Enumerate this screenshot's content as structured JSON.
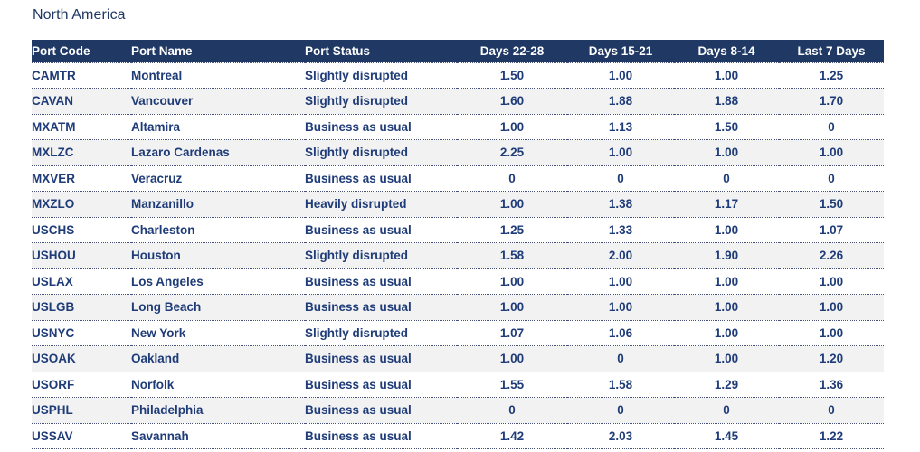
{
  "page": {
    "title": "North America"
  },
  "colors": {
    "header_bg": "#1F3864",
    "header_text": "#FFFFFF",
    "body_text": "#1F3C78",
    "alt_row_bg": "#F2F2F2",
    "row_border": "#46507A"
  },
  "table": {
    "columns": [
      "Port Code",
      "Port Name",
      "Port Status",
      "Days 22-28",
      "Days 15-21",
      "Days 8-14",
      "Last 7 Days"
    ],
    "rows": [
      {
        "code": "CAMTR",
        "name": "Montreal",
        "status": "Slightly disrupted",
        "d22_28": "1.50",
        "d15_21": "1.00",
        "d8_14": "1.00",
        "last7": "1.25"
      },
      {
        "code": "CAVAN",
        "name": "Vancouver",
        "status": "Slightly disrupted",
        "d22_28": "1.60",
        "d15_21": "1.88",
        "d8_14": "1.88",
        "last7": "1.70"
      },
      {
        "code": "MXATM",
        "name": "Altamira",
        "status": "Business as usual",
        "d22_28": "1.00",
        "d15_21": "1.13",
        "d8_14": "1.50",
        "last7": "0"
      },
      {
        "code": "MXLZC",
        "name": "Lazaro Cardenas",
        "status": "Slightly disrupted",
        "d22_28": "2.25",
        "d15_21": "1.00",
        "d8_14": "1.00",
        "last7": "1.00"
      },
      {
        "code": "MXVER",
        "name": "Veracruz",
        "status": "Business as usual",
        "d22_28": "0",
        "d15_21": "0",
        "d8_14": "0",
        "last7": "0"
      },
      {
        "code": "MXZLO",
        "name": "Manzanillo",
        "status": "Heavily disrupted",
        "d22_28": "1.00",
        "d15_21": "1.38",
        "d8_14": "1.17",
        "last7": "1.50"
      },
      {
        "code": "USCHS",
        "name": "Charleston",
        "status": "Business as usual",
        "d22_28": "1.25",
        "d15_21": "1.33",
        "d8_14": "1.00",
        "last7": "1.07"
      },
      {
        "code": "USHOU",
        "name": "Houston",
        "status": "Slightly disrupted",
        "d22_28": "1.58",
        "d15_21": "2.00",
        "d8_14": "1.90",
        "last7": "2.26"
      },
      {
        "code": "USLAX",
        "name": "Los Angeles",
        "status": "Business as usual",
        "d22_28": "1.00",
        "d15_21": "1.00",
        "d8_14": "1.00",
        "last7": "1.00"
      },
      {
        "code": "USLGB",
        "name": "Long Beach",
        "status": "Business as usual",
        "d22_28": "1.00",
        "d15_21": "1.00",
        "d8_14": "1.00",
        "last7": "1.00"
      },
      {
        "code": "USNYC",
        "name": "New York",
        "status": "Slightly disrupted",
        "d22_28": "1.07",
        "d15_21": "1.06",
        "d8_14": "1.00",
        "last7": "1.00"
      },
      {
        "code": "USOAK",
        "name": "Oakland",
        "status": "Business as usual",
        "d22_28": "1.00",
        "d15_21": "0",
        "d8_14": "1.00",
        "last7": "1.20"
      },
      {
        "code": "USORF",
        "name": "Norfolk",
        "status": "Business as usual",
        "d22_28": "1.55",
        "d15_21": "1.58",
        "d8_14": "1.29",
        "last7": "1.36"
      },
      {
        "code": "USPHL",
        "name": "Philadelphia",
        "status": "Business as usual",
        "d22_28": "0",
        "d15_21": "0",
        "d8_14": "0",
        "last7": "0"
      },
      {
        "code": "USSAV",
        "name": "Savannah",
        "status": "Business as usual",
        "d22_28": "1.42",
        "d15_21": "2.03",
        "d8_14": "1.45",
        "last7": "1.22"
      }
    ]
  },
  "chart_data": {
    "type": "table",
    "title": "North America",
    "columns": [
      "Port Code",
      "Port Name",
      "Port Status",
      "Days 22-28",
      "Days 15-21",
      "Days 8-14",
      "Last 7 Days"
    ],
    "rows": [
      [
        "CAMTR",
        "Montreal",
        "Slightly disrupted",
        1.5,
        1.0,
        1.0,
        1.25
      ],
      [
        "CAVAN",
        "Vancouver",
        "Slightly disrupted",
        1.6,
        1.88,
        1.88,
        1.7
      ],
      [
        "MXATM",
        "Altamira",
        "Business as usual",
        1.0,
        1.13,
        1.5,
        0
      ],
      [
        "MXLZC",
        "Lazaro Cardenas",
        "Slightly disrupted",
        2.25,
        1.0,
        1.0,
        1.0
      ],
      [
        "MXVER",
        "Veracruz",
        "Business as usual",
        0,
        0,
        0,
        0
      ],
      [
        "MXZLO",
        "Manzanillo",
        "Heavily disrupted",
        1.0,
        1.38,
        1.17,
        1.5
      ],
      [
        "USCHS",
        "Charleston",
        "Business as usual",
        1.25,
        1.33,
        1.0,
        1.07
      ],
      [
        "USHOU",
        "Houston",
        "Slightly disrupted",
        1.58,
        2.0,
        1.9,
        2.26
      ],
      [
        "USLAX",
        "Los Angeles",
        "Business as usual",
        1.0,
        1.0,
        1.0,
        1.0
      ],
      [
        "USLGB",
        "Long Beach",
        "Business as usual",
        1.0,
        1.0,
        1.0,
        1.0
      ],
      [
        "USNYC",
        "New York",
        "Slightly disrupted",
        1.07,
        1.06,
        1.0,
        1.0
      ],
      [
        "USOAK",
        "Oakland",
        "Business as usual",
        1.0,
        0,
        1.0,
        1.2
      ],
      [
        "USORF",
        "Norfolk",
        "Business as usual",
        1.55,
        1.58,
        1.29,
        1.36
      ],
      [
        "USPHL",
        "Philadelphia",
        "Business as usual",
        0,
        0,
        0,
        0
      ],
      [
        "USSAV",
        "Savannah",
        "Business as usual",
        1.42,
        2.03,
        1.45,
        1.22
      ]
    ],
    "layout": {
      "striped_rows": true,
      "header_background": "#1F3864",
      "numeric_columns_alignment": "center"
    }
  }
}
